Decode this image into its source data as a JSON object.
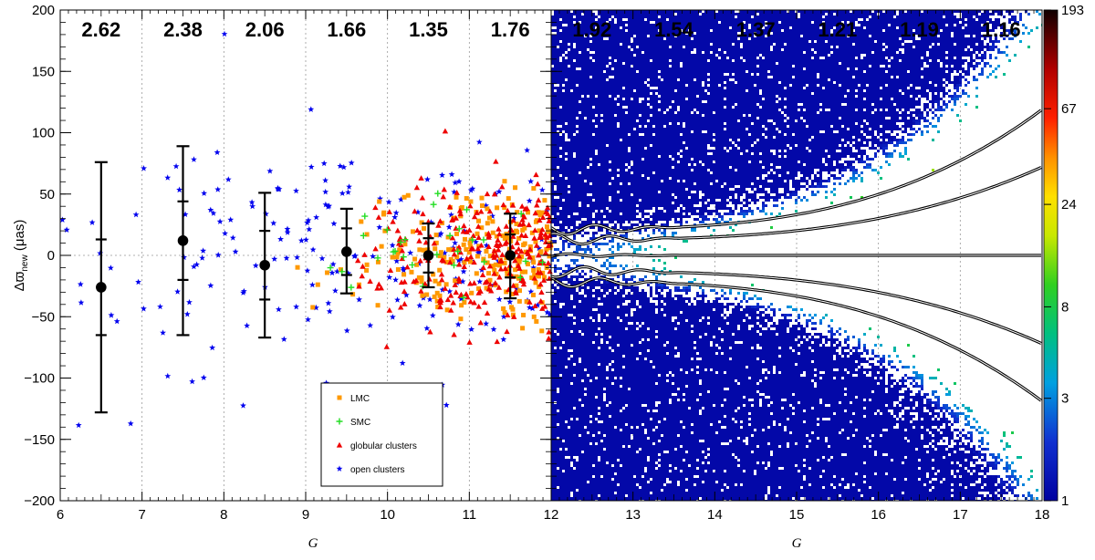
{
  "chart_data": {
    "type": "scatter",
    "xlabel": "G",
    "ylabel_parts": {
      "main": "Δϖ",
      "sub": "new",
      "unit": " (μas)"
    },
    "xlim": [
      6,
      18
    ],
    "ylim": [
      -200,
      200
    ],
    "x_ticks": [
      "6",
      "7",
      "8",
      "9",
      "10",
      "11",
      "12",
      "13",
      "14",
      "15",
      "16",
      "17",
      "18"
    ],
    "y_ticks": [
      "200",
      "150",
      "100",
      "50",
      "0",
      "−50",
      "−100",
      "−150",
      "−200"
    ],
    "y_tick_values": [
      200,
      150,
      100,
      50,
      0,
      -50,
      -100,
      -150,
      -200
    ],
    "ratios": [
      {
        "x": 6.5,
        "label": "2.62"
      },
      {
        "x": 7.5,
        "label": "2.38"
      },
      {
        "x": 8.5,
        "label": "2.06"
      },
      {
        "x": 9.5,
        "label": "1.66"
      },
      {
        "x": 10.5,
        "label": "1.35"
      },
      {
        "x": 11.5,
        "label": "1.76"
      },
      {
        "x": 12.5,
        "label": "1.92"
      },
      {
        "x": 13.5,
        "label": "1.54"
      },
      {
        "x": 14.5,
        "label": "1.37"
      },
      {
        "x": 15.5,
        "label": "1.21"
      },
      {
        "x": 16.5,
        "label": "1.19"
      },
      {
        "x": 17.5,
        "label": "1.16"
      }
    ],
    "binned_stats": [
      {
        "x": 6.5,
        "mean": -26,
        "q_low": -65,
        "q_high": 13,
        "w_low": -128,
        "w_high": 76
      },
      {
        "x": 7.5,
        "mean": 12,
        "q_low": -20,
        "q_high": 44,
        "w_low": -65,
        "w_high": 89
      },
      {
        "x": 8.5,
        "mean": -8,
        "q_low": -36,
        "q_high": 20,
        "w_low": -67,
        "w_high": 51
      },
      {
        "x": 9.5,
        "mean": 3,
        "q_low": -16,
        "q_high": 22,
        "w_low": -31,
        "w_high": 38
      },
      {
        "x": 10.5,
        "mean": 0,
        "q_low": -14,
        "q_high": 14,
        "w_low": -26,
        "w_high": 26
      },
      {
        "x": 11.5,
        "mean": 0,
        "q_low": -18,
        "q_high": 17,
        "w_low": -35,
        "w_high": 34
      }
    ],
    "legend": [
      {
        "name": "LMC",
        "marker": "square",
        "color": "#ff9900"
      },
      {
        "name": "SMC",
        "marker": "plus",
        "color": "#22dd22"
      },
      {
        "name": "globular clusters",
        "marker": "triangle",
        "color": "#ee0000"
      },
      {
        "name": "open clusters",
        "marker": "star",
        "color": "#0000ee"
      }
    ],
    "colorbar": {
      "ticks": [
        "193",
        "67",
        "24",
        "8",
        "3",
        "1"
      ],
      "tick_values": [
        193,
        67,
        24,
        8,
        3,
        1
      ],
      "min": 1,
      "max": 193
    }
  }
}
